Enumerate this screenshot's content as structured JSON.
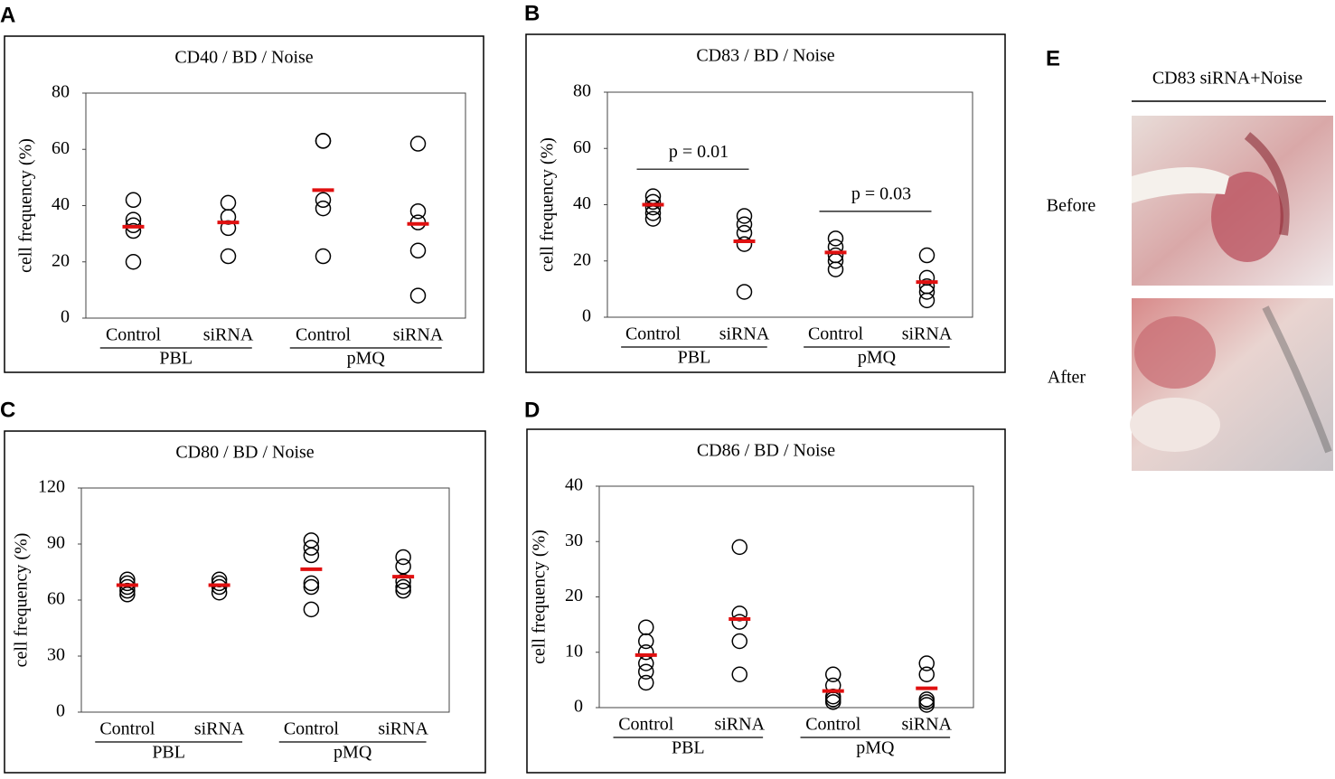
{
  "chart_data": [
    {
      "type": "strip",
      "panel": "A",
      "title": "CD40 / BD / Noise",
      "y_label": "cell frequency  (%)",
      "categories": [
        "Control",
        "siRNA",
        "Control",
        "siRNA"
      ],
      "groups": [
        "PBL",
        "pMQ"
      ],
      "points": [
        [
          42,
          35,
          33,
          31,
          20
        ],
        [
          41,
          36,
          32,
          22
        ],
        [
          63,
          63,
          42,
          39,
          22
        ],
        [
          62,
          38,
          34,
          24,
          8
        ]
      ],
      "means": [
        32.5,
        34,
        45.5,
        33.5
      ],
      "point_color": "#000000",
      "mean_color": "#e01010",
      "ylim": [
        0,
        80
      ],
      "yticks": [
        0,
        20,
        40,
        60,
        80
      ]
    },
    {
      "type": "strip",
      "panel": "B",
      "title": "CD83 / BD / Noise",
      "y_label": "cell frequency  (%)",
      "categories": [
        "Control",
        "siRNA",
        "Control",
        "siRNA"
      ],
      "groups": [
        "PBL",
        "pMQ"
      ],
      "group_annotations": [
        "p = 0.01",
        "p = 0.03"
      ],
      "points": [
        [
          43,
          41,
          39,
          37,
          35
        ],
        [
          36,
          33,
          30,
          26,
          9
        ],
        [
          28,
          25,
          22,
          20,
          17
        ],
        [
          22,
          14,
          11,
          9,
          6
        ]
      ],
      "means": [
        40,
        27,
        23,
        12.5
      ],
      "point_color": "#000000",
      "mean_color": "#e01010",
      "ylim": [
        0,
        80
      ],
      "yticks": [
        0,
        20,
        40,
        60,
        80
      ]
    },
    {
      "type": "strip",
      "panel": "C",
      "title": "CD80 / BD / Noise",
      "y_label": "cell frequency  (%)",
      "categories": [
        "Control",
        "siRNA",
        "Control",
        "siRNA"
      ],
      "groups": [
        "PBL",
        "pMQ"
      ],
      "points": [
        [
          71,
          69,
          67,
          65,
          63
        ],
        [
          71,
          69,
          67,
          64
        ],
        [
          92,
          88,
          84,
          69,
          67,
          55
        ],
        [
          83,
          78,
          70,
          67,
          65
        ]
      ],
      "means": [
        68,
        68,
        76.5,
        72.5
      ],
      "point_color": "#000000",
      "mean_color": "#e01010",
      "ylim": [
        0,
        120
      ],
      "yticks": [
        0,
        30,
        60,
        90,
        120
      ]
    },
    {
      "type": "strip",
      "panel": "D",
      "title": "CD86 / BD / Noise",
      "y_label": "cell frequency (%)",
      "categories": [
        "Control",
        "siRNA",
        "Control",
        "siRNA"
      ],
      "groups": [
        "PBL",
        "pMQ"
      ],
      "points": [
        [
          14.5,
          12,
          10,
          8,
          6.5,
          4.5
        ],
        [
          29,
          17,
          15.5,
          12,
          6
        ],
        [
          6,
          4,
          2,
          1.5,
          1
        ],
        [
          8,
          6,
          1.5,
          1,
          0.5
        ]
      ],
      "means": [
        9.5,
        16,
        3,
        3.5
      ],
      "point_color": "#000000",
      "mean_color": "#e01010",
      "ylim": [
        0,
        40
      ],
      "yticks": [
        0,
        10,
        20,
        30,
        40
      ]
    }
  ],
  "panel_e": {
    "panel": "E",
    "title": "CD83 siRNA+Noise",
    "rows": [
      "Before",
      "After"
    ]
  }
}
